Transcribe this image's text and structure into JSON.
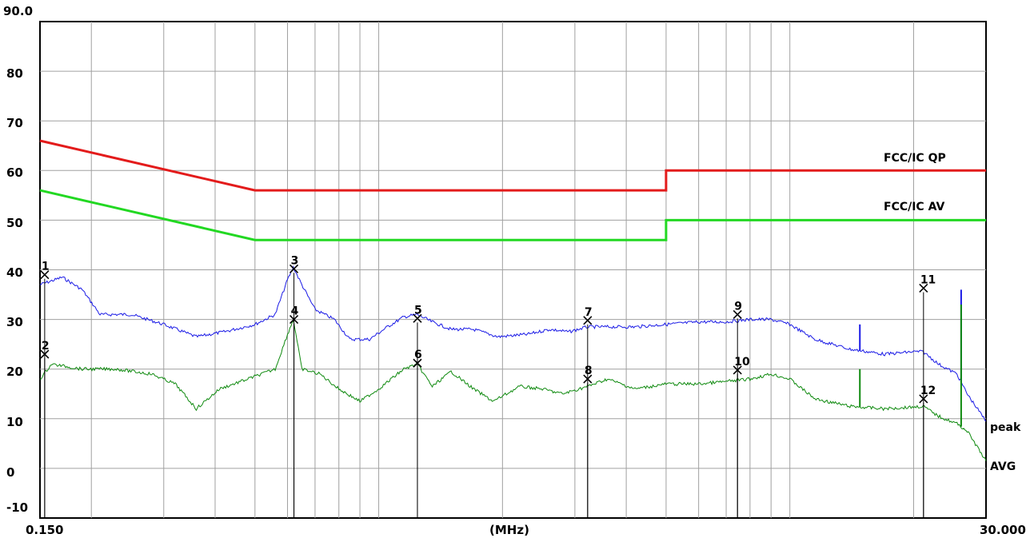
{
  "chart_data": {
    "type": "line",
    "xlabel": "(MHz)",
    "x_scale": "log",
    "xlim": [
      0.15,
      30.0
    ],
    "ylim": [
      -10,
      90
    ],
    "x_tick_labels": [
      "0.150",
      "30.000"
    ],
    "y_tick_labels": [
      "90.0",
      "80",
      "70",
      "60",
      "50",
      "40",
      "30",
      "20",
      "10",
      "0",
      "-10"
    ],
    "grid": true,
    "colors": {
      "qp_limit": "#e31b1b",
      "av_limit": "#22d822",
      "peak": "#1a1ae6",
      "avg": "#0f8a0f",
      "marker": "#000000"
    },
    "limits": [
      {
        "name": "FCC/IC QP",
        "points": [
          [
            0.15,
            66.0
          ],
          [
            0.5,
            56.0
          ],
          [
            5.0,
            56.0
          ],
          [
            5.0,
            60.0
          ],
          [
            30.0,
            60.0
          ]
        ]
      },
      {
        "name": "FCC/IC AV",
        "points": [
          [
            0.15,
            56.0
          ],
          [
            0.5,
            46.0
          ],
          [
            5.0,
            46.0
          ],
          [
            5.0,
            50.0
          ],
          [
            30.0,
            50.0
          ]
        ]
      }
    ],
    "series": [
      {
        "name": "peak",
        "points": [
          [
            0.15,
            37.0
          ],
          [
            0.17,
            38.5
          ],
          [
            0.19,
            36.0
          ],
          [
            0.21,
            31.0
          ],
          [
            0.25,
            31.0
          ],
          [
            0.3,
            29.0
          ],
          [
            0.36,
            26.5
          ],
          [
            0.42,
            27.5
          ],
          [
            0.5,
            29.0
          ],
          [
            0.56,
            31.0
          ],
          [
            0.6,
            38.0
          ],
          [
            0.62,
            40.5
          ],
          [
            0.65,
            37.0
          ],
          [
            0.7,
            32.0
          ],
          [
            0.78,
            30.0
          ],
          [
            0.85,
            26.0
          ],
          [
            0.95,
            26.0
          ],
          [
            1.05,
            28.5
          ],
          [
            1.15,
            30.5
          ],
          [
            1.24,
            31.0
          ],
          [
            1.35,
            29.5
          ],
          [
            1.5,
            28.0
          ],
          [
            1.7,
            28.0
          ],
          [
            1.95,
            26.5
          ],
          [
            2.3,
            27.0
          ],
          [
            2.6,
            28.0
          ],
          [
            2.9,
            27.5
          ],
          [
            3.22,
            28.5
          ],
          [
            3.6,
            28.5
          ],
          [
            4.2,
            28.5
          ],
          [
            5.0,
            29.0
          ],
          [
            6.0,
            29.5
          ],
          [
            7.0,
            29.5
          ],
          [
            8.0,
            30.0
          ],
          [
            9.0,
            30.0
          ],
          [
            10.0,
            29.0
          ],
          [
            11.5,
            26.0
          ],
          [
            14.0,
            24.0
          ],
          [
            17.0,
            23.0
          ],
          [
            20.0,
            23.5
          ],
          [
            21.1,
            23.5
          ],
          [
            23.0,
            21.0
          ],
          [
            25.5,
            19.0
          ],
          [
            27.0,
            15.0
          ],
          [
            30.0,
            9.5
          ]
        ]
      },
      {
        "name": "AVG",
        "points": [
          [
            0.15,
            18.0
          ],
          [
            0.16,
            21.0
          ],
          [
            0.19,
            20.0
          ],
          [
            0.23,
            20.0
          ],
          [
            0.28,
            19.0
          ],
          [
            0.32,
            17.0
          ],
          [
            0.36,
            12.0
          ],
          [
            0.41,
            16.0
          ],
          [
            0.48,
            18.0
          ],
          [
            0.56,
            20.0
          ],
          [
            0.6,
            27.0
          ],
          [
            0.62,
            30.0
          ],
          [
            0.65,
            20.0
          ],
          [
            0.72,
            19.0
          ],
          [
            0.8,
            16.0
          ],
          [
            0.9,
            13.5
          ],
          [
            1.0,
            16.0
          ],
          [
            1.15,
            20.0
          ],
          [
            1.24,
            21.0
          ],
          [
            1.35,
            16.5
          ],
          [
            1.5,
            19.5
          ],
          [
            1.7,
            16.0
          ],
          [
            1.9,
            13.5
          ],
          [
            2.2,
            16.5
          ],
          [
            2.5,
            16.0
          ],
          [
            2.8,
            15.0
          ],
          [
            3.22,
            16.5
          ],
          [
            3.6,
            18.0
          ],
          [
            4.2,
            16.0
          ],
          [
            5.0,
            17.0
          ],
          [
            6.0,
            17.0
          ],
          [
            7.0,
            17.5
          ],
          [
            8.0,
            18.0
          ],
          [
            9.0,
            19.0
          ],
          [
            10.0,
            18.0
          ],
          [
            11.5,
            14.0
          ],
          [
            14.0,
            12.5
          ],
          [
            17.0,
            12.0
          ],
          [
            21.1,
            12.5
          ],
          [
            23.0,
            10.5
          ],
          [
            25.5,
            9.0
          ],
          [
            27.0,
            7.5
          ],
          [
            30.0,
            1.5
          ]
        ]
      }
    ],
    "spikes": [
      {
        "series": "peak",
        "x": 14.8,
        "y": 29.0
      },
      {
        "series": "peak",
        "x": 26.1,
        "y": 36.0
      },
      {
        "series": "AVG",
        "x": 14.8,
        "y": 20.0
      },
      {
        "series": "AVG",
        "x": 26.1,
        "y": 33.0
      }
    ],
    "markers": [
      {
        "label": "1",
        "x": 0.154,
        "y": 39.0
      },
      {
        "label": "2",
        "x": 0.154,
        "y": 23.0
      },
      {
        "label": "3",
        "x": 0.622,
        "y": 40.2
      },
      {
        "label": "4",
        "x": 0.622,
        "y": 30.0
      },
      {
        "label": "5",
        "x": 1.242,
        "y": 30.2
      },
      {
        "label": "6",
        "x": 1.242,
        "y": 21.2
      },
      {
        "label": "7",
        "x": 3.222,
        "y": 29.8
      },
      {
        "label": "8",
        "x": 3.222,
        "y": 18.0
      },
      {
        "label": "9",
        "x": 7.458,
        "y": 31.0
      },
      {
        "label": "10",
        "x": 7.458,
        "y": 19.8
      },
      {
        "label": "11",
        "x": 21.138,
        "y": 36.3
      },
      {
        "label": "12",
        "x": 21.138,
        "y": 14.0
      }
    ]
  }
}
